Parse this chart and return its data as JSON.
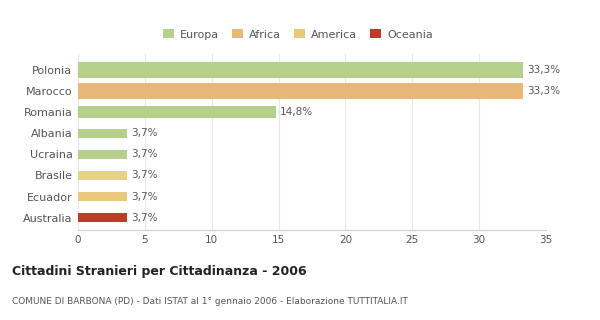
{
  "categories": [
    "Polonia",
    "Marocco",
    "Romania",
    "Albania",
    "Ucraina",
    "Brasile",
    "Ecuador",
    "Australia"
  ],
  "values": [
    33.3,
    33.3,
    14.8,
    3.7,
    3.7,
    3.7,
    3.7,
    3.7
  ],
  "labels": [
    "33,3%",
    "33,3%",
    "14,8%",
    "3,7%",
    "3,7%",
    "3,7%",
    "3,7%",
    "3,7%"
  ],
  "colors": [
    "#b5d08a",
    "#e8b87a",
    "#b5d08a",
    "#b5d08a",
    "#b5d08a",
    "#e8d47a",
    "#e8c87a",
    "#c0392b"
  ],
  "legend_labels": [
    "Europa",
    "Africa",
    "America",
    "Oceania"
  ],
  "legend_colors": [
    "#b5d08a",
    "#e8b87a",
    "#e8c87a",
    "#c0392b"
  ],
  "bar_heights": [
    0.72,
    0.72,
    0.55,
    0.45,
    0.45,
    0.45,
    0.45,
    0.45
  ],
  "title": "Cittadini Stranieri per Cittadinanza - 2006",
  "subtitle": "COMUNE DI BARBONA (PD) - Dati ISTAT al 1° gennaio 2006 - Elaborazione TUTTITALIA.IT",
  "xlim": [
    0,
    35
  ],
  "xticks": [
    0,
    5,
    10,
    15,
    20,
    25,
    30,
    35
  ],
  "background_color": "#ffffff",
  "grid_color": "#e8e8e8"
}
